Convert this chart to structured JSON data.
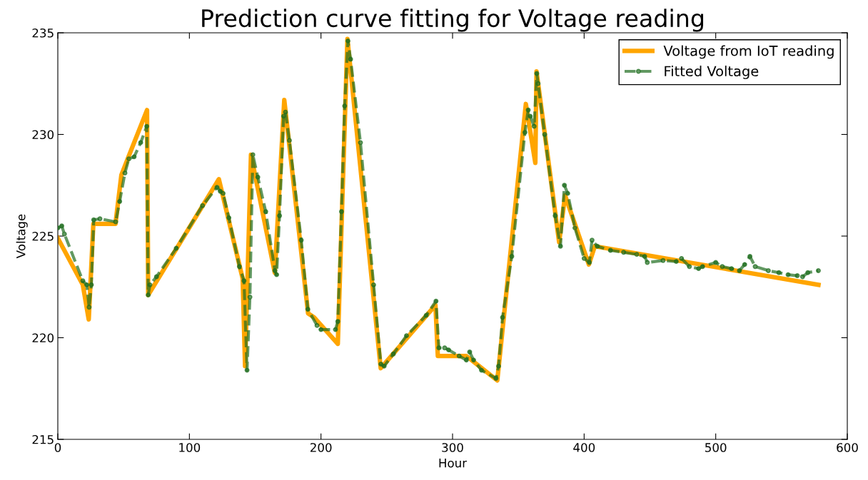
{
  "chart_data": {
    "type": "line",
    "title": "Prediction curve fitting for Voltage reading",
    "xlabel": "Hour",
    "ylabel": "Voltage",
    "xlim": [
      0,
      600
    ],
    "xticks": [
      0,
      100,
      200,
      300,
      400,
      500,
      600
    ],
    "ylim": [
      215,
      235
    ],
    "yticks": [
      215,
      220,
      225,
      230,
      235
    ],
    "grid": false,
    "legend": "top right",
    "series": [
      {
        "name": "Voltage from IoT reading",
        "color": "#ffa500",
        "line_style": "solid",
        "marker": "none",
        "x": [
          0,
          19,
          23.5,
          27,
          43.8,
          48.3,
          53.7,
          67.8,
          68.7,
          122.4,
          140.5,
          142.3,
          146.8,
          164.9,
          172.1,
          190.2,
          194.8,
          212.8,
          220.1,
          245.4,
          287,
          288.8,
          310.5,
          334,
          355.7,
          362.9,
          363.8,
          381,
          385.5,
          403.6,
          408.1,
          578.1
        ],
        "values": [
          224.9,
          222.6,
          220.9,
          225.6,
          225.6,
          228.0,
          228.9,
          231.2,
          222.1,
          227.8,
          222.9,
          218.6,
          229.0,
          223.2,
          231.7,
          221.2,
          221.0,
          219.7,
          234.7,
          218.5,
          221.6,
          219.1,
          219.1,
          217.9,
          231.5,
          228.6,
          233.1,
          224.7,
          227.0,
          223.6,
          224.5,
          222.6
        ]
      },
      {
        "name": "Fitted Voltage",
        "color": "#1f6e1f",
        "line_style": "dashed",
        "marker": "circle",
        "x": [
          0,
          3,
          5,
          19,
          22,
          23.8,
          25.5,
          27.3,
          32,
          44,
          47,
          51,
          54,
          58,
          63,
          67.6,
          68.7,
          70,
          75,
          90,
          110,
          121,
          123.5,
          125.6,
          130,
          138,
          141.5,
          143.8,
          146,
          148.2,
          152,
          158,
          165,
          166.3,
          168.5,
          171.6,
          173,
          176,
          185,
          190,
          197,
          200,
          211,
          212.8,
          215.6,
          218,
          220.5,
          222.5,
          230,
          240,
          245.5,
          248,
          255,
          265,
          280,
          287.4,
          289.6,
          294,
          297,
          305,
          310.5,
          313,
          316,
          322,
          333,
          335,
          338,
          345,
          355,
          357.5,
          359,
          362,
          364,
          365,
          370,
          378,
          382,
          385,
          387.5,
          393,
          400,
          404,
          406,
          410,
          420,
          430,
          440,
          446,
          448,
          460,
          470,
          474,
          480,
          487,
          490,
          500,
          505,
          512,
          518,
          522,
          526,
          530,
          540,
          548,
          555,
          562,
          566,
          570,
          578
        ],
        "values": [
          225.4,
          225.5,
          225.1,
          222.8,
          222.6,
          221.5,
          222.6,
          225.8,
          225.85,
          225.7,
          226.7,
          228.1,
          228.8,
          228.9,
          229.6,
          230.4,
          222.1,
          222.6,
          223.0,
          224.4,
          226.5,
          227.4,
          227.2,
          227.1,
          225.9,
          223.5,
          222.8,
          218.4,
          222.0,
          229.0,
          227.9,
          226.2,
          223.3,
          223.1,
          226.0,
          230.9,
          231.1,
          229.7,
          224.8,
          221.4,
          220.6,
          220.4,
          220.4,
          220.8,
          226.2,
          231.4,
          234.6,
          233.7,
          229.6,
          222.6,
          218.7,
          218.6,
          219.2,
          220.1,
          221.1,
          221.8,
          219.5,
          219.5,
          219.4,
          219.1,
          218.9,
          219.3,
          218.9,
          218.4,
          218.0,
          218.6,
          221.0,
          224.0,
          230.1,
          231.2,
          230.9,
          230.4,
          233.0,
          232.5,
          230.0,
          226.0,
          224.5,
          227.5,
          227.1,
          225.4,
          223.9,
          223.7,
          224.8,
          224.5,
          224.3,
          224.2,
          224.1,
          224.0,
          223.7,
          223.8,
          223.75,
          223.9,
          223.5,
          223.4,
          223.5,
          223.7,
          223.5,
          223.4,
          223.3,
          223.6,
          224.0,
          223.5,
          223.3,
          223.2,
          223.1,
          223.05,
          223.0,
          223.2,
          223.3
        ]
      }
    ]
  }
}
